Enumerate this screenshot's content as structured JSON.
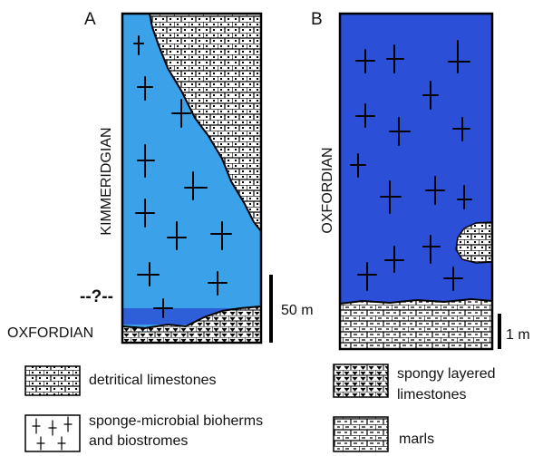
{
  "section_a": {
    "label": "A",
    "stage_upper": "KIMMERIDGIAN",
    "boundary": "--?--",
    "stage_lower": "OXFORDIAN",
    "scale": "50 m"
  },
  "section_b": {
    "label": "B",
    "stage": "OXFORDIAN",
    "scale": "1 m"
  },
  "legend": {
    "detrital": "detritical limestones",
    "bioherms": [
      "sponge-microbial bioherms",
      "and biostromes"
    ],
    "spongy": [
      "spongy layered",
      "limestones"
    ],
    "marls": "marls"
  }
}
